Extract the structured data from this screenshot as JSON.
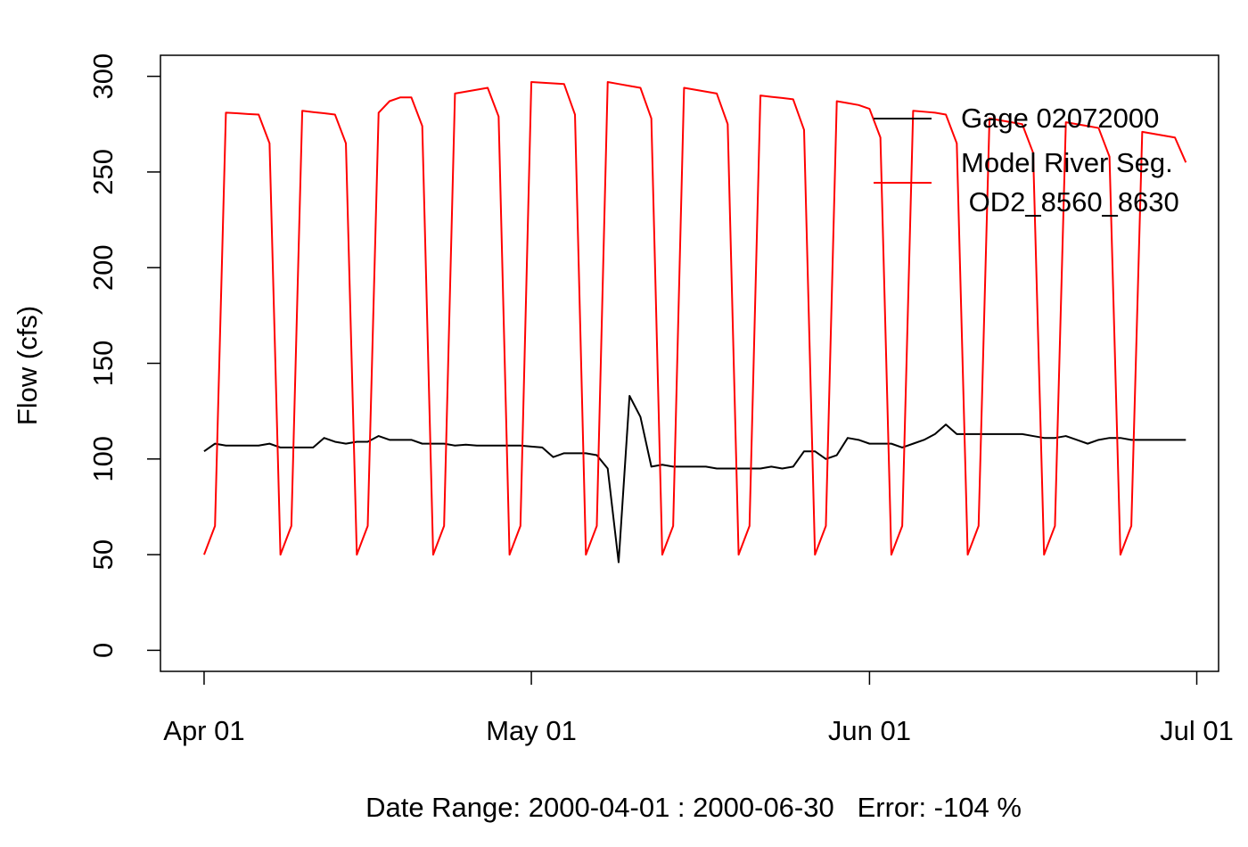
{
  "chart_data": {
    "type": "line",
    "xlabel": "Date Range: 2000-04-01 : 2000-06-30   Error: -104 %",
    "ylabel": "Flow (cfs)",
    "x": [
      "2000-04-01",
      "2000-04-02",
      "2000-04-03",
      "2000-04-04",
      "2000-04-05",
      "2000-04-06",
      "2000-04-07",
      "2000-04-08",
      "2000-04-09",
      "2000-04-10",
      "2000-04-11",
      "2000-04-12",
      "2000-04-13",
      "2000-04-14",
      "2000-04-15",
      "2000-04-16",
      "2000-04-17",
      "2000-04-18",
      "2000-04-19",
      "2000-04-20",
      "2000-04-21",
      "2000-04-22",
      "2000-04-23",
      "2000-04-24",
      "2000-04-25",
      "2000-04-26",
      "2000-04-27",
      "2000-04-28",
      "2000-04-29",
      "2000-04-30",
      "2000-05-01",
      "2000-05-02",
      "2000-05-03",
      "2000-05-04",
      "2000-05-05",
      "2000-05-06",
      "2000-05-07",
      "2000-05-08",
      "2000-05-09",
      "2000-05-10",
      "2000-05-11",
      "2000-05-12",
      "2000-05-13",
      "2000-05-14",
      "2000-05-15",
      "2000-05-16",
      "2000-05-17",
      "2000-05-18",
      "2000-05-19",
      "2000-05-20",
      "2000-05-21",
      "2000-05-22",
      "2000-05-23",
      "2000-05-24",
      "2000-05-25",
      "2000-05-26",
      "2000-05-27",
      "2000-05-28",
      "2000-05-29",
      "2000-05-30",
      "2000-05-31",
      "2000-06-01",
      "2000-06-02",
      "2000-06-03",
      "2000-06-04",
      "2000-06-05",
      "2000-06-06",
      "2000-06-07",
      "2000-06-08",
      "2000-06-09",
      "2000-06-10",
      "2000-06-11",
      "2000-06-12",
      "2000-06-13",
      "2000-06-14",
      "2000-06-15",
      "2000-06-16",
      "2000-06-17",
      "2000-06-18",
      "2000-06-19",
      "2000-06-20",
      "2000-06-21",
      "2000-06-22",
      "2000-06-23",
      "2000-06-24",
      "2000-06-25",
      "2000-06-26",
      "2000-06-27",
      "2000-06-28",
      "2000-06-29",
      "2000-06-30"
    ],
    "series": [
      {
        "name": "Gage 02072000",
        "color": "#000000",
        "values": [
          104,
          108,
          107,
          107,
          107,
          107,
          108,
          106,
          106,
          106,
          106,
          111,
          109,
          108,
          109,
          109,
          112,
          110,
          110,
          110,
          108,
          108,
          108,
          107,
          107.5,
          107,
          107,
          107,
          107,
          107,
          106.5,
          106,
          101,
          103,
          103,
          103,
          102,
          95,
          46,
          133,
          122,
          96,
          97,
          96,
          96,
          96,
          96,
          95,
          95,
          95,
          95,
          95,
          96,
          95,
          96,
          104,
          104,
          100,
          102,
          111,
          110,
          108,
          108,
          108,
          106,
          108,
          110,
          113,
          118,
          113,
          113,
          113,
          113,
          113,
          113,
          113,
          112,
          111,
          111,
          112,
          110,
          108,
          110,
          111,
          111,
          110,
          110,
          110,
          110,
          110,
          110
        ]
      },
      {
        "name": "Model River Seg.\n OD2_8560_8630",
        "color": "#ff0000",
        "values": [
          50,
          65,
          281,
          280.7,
          280.3,
          280,
          265,
          50,
          65,
          282,
          281.3,
          280.7,
          280,
          265,
          50,
          65,
          281,
          287,
          289,
          289,
          274,
          50,
          65,
          291,
          292,
          293,
          294,
          279,
          50,
          65,
          297,
          296.7,
          296.3,
          296,
          280,
          50,
          65,
          297,
          296,
          295,
          294,
          278,
          50,
          65,
          294,
          293,
          292,
          291,
          275,
          50,
          65,
          290,
          289.3,
          288.7,
          288,
          272,
          50,
          65,
          287,
          286,
          285,
          283,
          268,
          50,
          65,
          282,
          281.5,
          281,
          280,
          265,
          50,
          65,
          278,
          277,
          276,
          275,
          260,
          50,
          65,
          276,
          275,
          274,
          273,
          258,
          50,
          65,
          271,
          270,
          269,
          268,
          255
        ]
      }
    ],
    "xlim": [
      "2000-03-28",
      "2000-07-03"
    ],
    "xticks": [
      {
        "value": "2000-04-01",
        "label": "Apr 01"
      },
      {
        "value": "2000-05-01",
        "label": "May 01"
      },
      {
        "value": "2000-06-01",
        "label": "Jun 01"
      },
      {
        "value": "2000-07-01",
        "label": "Jul 01"
      }
    ],
    "ylim": [
      -11,
      311
    ],
    "yticks": [
      0,
      50,
      100,
      150,
      200,
      250,
      300
    ],
    "legend": "topright",
    "grid": false
  }
}
